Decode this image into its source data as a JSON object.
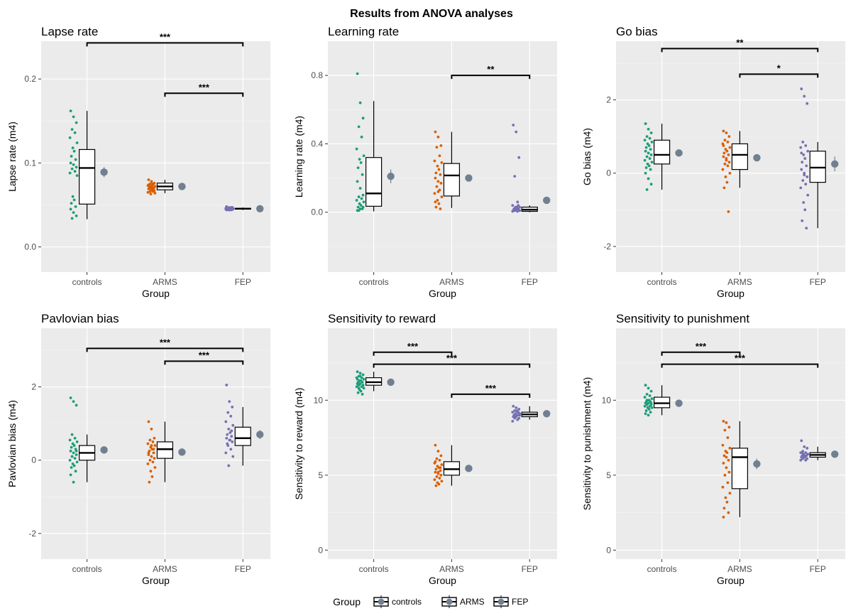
{
  "title": "Results from ANOVA analyses",
  "colors": {
    "controls": "#1b9e77",
    "ARMS": "#d95f02",
    "FEP": "#7570b3",
    "mean": "#708090",
    "panel": "#ebebeb"
  },
  "legend": {
    "title": "Group",
    "items": [
      "controls",
      "ARMS",
      "FEP"
    ],
    "position": "bottom"
  },
  "chart_data": [
    {
      "type": "box-jitter",
      "title": "Lapse rate",
      "xlabel": "Group",
      "ylabel": "Lapse rate (m4)",
      "categories": [
        "controls",
        "ARMS",
        "FEP"
      ],
      "ylim": [
        -0.03,
        0.245
      ],
      "yticks": [
        {
          "v": 0.0,
          "label": "0.0"
        },
        {
          "v": 0.1,
          "label": "0.1"
        },
        {
          "v": 0.2,
          "label": "0.2"
        }
      ],
      "points": [
        [
          0.162,
          0.155,
          0.148,
          0.14,
          0.136,
          0.13,
          0.124,
          0.118,
          0.114,
          0.108,
          0.104,
          0.1,
          0.098,
          0.095,
          0.093,
          0.09,
          0.088,
          0.085,
          0.06,
          0.056,
          0.052,
          0.048,
          0.045,
          0.041,
          0.037,
          0.034
        ],
        [
          0.08,
          0.078,
          0.076,
          0.075,
          0.074,
          0.073,
          0.072,
          0.072,
          0.071,
          0.07,
          0.07,
          0.069,
          0.068,
          0.067,
          0.066,
          0.066,
          0.065,
          0.064,
          0.063,
          0.075,
          0.071,
          0.068,
          0.074,
          0.069
        ],
        [
          0.048,
          0.047,
          0.047,
          0.046,
          0.046,
          0.046,
          0.045,
          0.045,
          0.045,
          0.045,
          0.044,
          0.044,
          0.044,
          0.047,
          0.046,
          0.045,
          0.045,
          0.046,
          0.044,
          0.045,
          0.046,
          0.047
        ]
      ],
      "boxes": [
        {
          "min": 0.033,
          "q1": 0.051,
          "median": 0.094,
          "q3": 0.116,
          "max": 0.162
        },
        {
          "min": 0.064,
          "q1": 0.068,
          "median": 0.072,
          "q3": 0.076,
          "max": 0.08
        },
        {
          "min": 0.044,
          "q1": 0.045,
          "median": 0.0455,
          "q3": 0.046,
          "max": 0.047
        }
      ],
      "means": [
        {
          "mean": 0.089,
          "lo": 0.083,
          "hi": 0.095
        },
        {
          "mean": 0.072,
          "lo": 0.071,
          "hi": 0.073
        },
        {
          "mean": 0.0455,
          "lo": 0.045,
          "hi": 0.046
        }
      ],
      "significance": [
        {
          "from": 0,
          "to": 2,
          "y": 0.243,
          "label": "***"
        },
        {
          "from": 1,
          "to": 2,
          "y": 0.183,
          "label": "***"
        }
      ]
    },
    {
      "type": "box-jitter",
      "title": "Learning rate",
      "xlabel": "Group",
      "ylabel": "Learning rate (m4)",
      "categories": [
        "controls",
        "ARMS",
        "FEP"
      ],
      "ylim": [
        -0.35,
        1.0
      ],
      "yticks": [
        {
          "v": 0.0,
          "label": "0.0"
        },
        {
          "v": 0.4,
          "label": "0.4"
        },
        {
          "v": 0.8,
          "label": "0.8"
        }
      ],
      "points": [
        [
          0.81,
          0.64,
          0.55,
          0.5,
          0.44,
          0.37,
          0.33,
          0.31,
          0.29,
          0.26,
          0.22,
          0.18,
          0.14,
          0.1,
          0.09,
          0.08,
          0.07,
          0.06,
          0.05,
          0.04,
          0.03,
          0.02,
          0.01,
          0.02,
          0.03,
          0.01
        ],
        [
          0.47,
          0.44,
          0.39,
          0.38,
          0.33,
          0.3,
          0.29,
          0.27,
          0.25,
          0.23,
          0.22,
          0.2,
          0.18,
          0.17,
          0.15,
          0.13,
          0.11,
          0.09,
          0.07,
          0.05,
          0.03,
          0.02,
          0.06,
          0.12
        ],
        [
          0.51,
          0.47,
          0.32,
          0.21,
          0.06,
          0.04,
          0.03,
          0.03,
          0.02,
          0.02,
          0.02,
          0.01,
          0.01,
          0.01,
          0.01,
          0.005,
          0.005,
          0.01,
          0.02,
          0.03,
          0.01,
          0.04
        ]
      ],
      "boxes": [
        {
          "min": 0.005,
          "q1": 0.035,
          "median": 0.11,
          "q3": 0.32,
          "max": 0.65
        },
        {
          "min": 0.025,
          "q1": 0.095,
          "median": 0.215,
          "q3": 0.285,
          "max": 0.47
        },
        {
          "min": 0.0,
          "q1": 0.005,
          "median": 0.015,
          "q3": 0.03,
          "max": 0.04
        }
      ],
      "means": [
        {
          "mean": 0.21,
          "lo": 0.17,
          "hi": 0.25
        },
        {
          "mean": 0.2,
          "lo": 0.185,
          "hi": 0.215
        },
        {
          "mean": 0.07,
          "lo": 0.06,
          "hi": 0.08
        }
      ],
      "significance": [
        {
          "from": 1,
          "to": 2,
          "y": 0.8,
          "label": "**"
        }
      ]
    },
    {
      "type": "box-jitter",
      "title": "Go bias",
      "xlabel": "Group",
      "ylabel": "Go bias (m4)",
      "categories": [
        "controls",
        "ARMS",
        "FEP"
      ],
      "ylim": [
        -2.7,
        3.6
      ],
      "yticks": [
        {
          "v": -2,
          "label": "-2"
        },
        {
          "v": 0,
          "label": "0"
        },
        {
          "v": 2,
          "label": "2"
        }
      ],
      "points": [
        [
          1.35,
          1.2,
          1.1,
          1.0,
          0.95,
          0.9,
          0.85,
          0.8,
          0.75,
          0.7,
          0.65,
          0.6,
          0.55,
          0.5,
          0.45,
          0.4,
          0.35,
          0.3,
          0.25,
          0.2,
          0.15,
          0.1,
          0.0,
          -0.15,
          -0.3,
          -0.45
        ],
        [
          1.15,
          1.1,
          1.0,
          0.9,
          0.85,
          0.8,
          0.7,
          0.65,
          0.6,
          0.55,
          0.5,
          0.45,
          0.4,
          0.3,
          0.25,
          0.2,
          0.1,
          0.0,
          -0.1,
          -0.25,
          -0.4,
          -1.05,
          0.75,
          0.35
        ],
        [
          2.3,
          2.1,
          1.9,
          0.85,
          0.75,
          0.7,
          0.6,
          0.5,
          0.4,
          0.3,
          0.2,
          0.1,
          0.0,
          -0.1,
          -0.2,
          -0.3,
          -0.4,
          -0.6,
          -0.8,
          -1.0,
          -1.3,
          -1.5,
          0.55,
          -0.05
        ]
      ],
      "boxes": [
        {
          "min": -0.45,
          "q1": 0.25,
          "median": 0.5,
          "q3": 0.9,
          "max": 1.35
        },
        {
          "min": -0.4,
          "q1": 0.1,
          "median": 0.5,
          "q3": 0.8,
          "max": 1.15
        },
        {
          "min": -1.5,
          "q1": -0.25,
          "median": 0.15,
          "q3": 0.6,
          "max": 0.85
        }
      ],
      "means": [
        {
          "mean": 0.55,
          "lo": 0.47,
          "hi": 0.63
        },
        {
          "mean": 0.42,
          "lo": 0.33,
          "hi": 0.51
        },
        {
          "mean": 0.25,
          "lo": 0.05,
          "hi": 0.45
        }
      ],
      "significance": [
        {
          "from": 0,
          "to": 2,
          "y": 3.4,
          "label": "**"
        },
        {
          "from": 1,
          "to": 2,
          "y": 2.7,
          "label": "*"
        }
      ]
    },
    {
      "type": "box-jitter",
      "title": "Pavlovian bias",
      "xlabel": "Group",
      "ylabel": "Pavlovian bias (m4)",
      "categories": [
        "controls",
        "ARMS",
        "FEP"
      ],
      "ylim": [
        -2.7,
        3.6
      ],
      "yticks": [
        {
          "v": -2,
          "label": "-2"
        },
        {
          "v": 0,
          "label": "0"
        },
        {
          "v": 2,
          "label": "2"
        }
      ],
      "points": [
        [
          1.7,
          1.6,
          1.5,
          0.7,
          0.6,
          0.55,
          0.5,
          0.45,
          0.4,
          0.35,
          0.3,
          0.25,
          0.2,
          0.15,
          0.1,
          0.05,
          0.0,
          -0.05,
          -0.1,
          -0.15,
          -0.2,
          -0.3,
          -0.4,
          -0.6,
          0.25,
          0.1
        ],
        [
          1.05,
          0.85,
          0.6,
          0.55,
          0.5,
          0.45,
          0.4,
          0.35,
          0.3,
          0.25,
          0.2,
          0.15,
          0.1,
          0.05,
          0.0,
          -0.05,
          -0.1,
          -0.2,
          -0.3,
          -0.45,
          -0.6,
          0.3,
          0.2,
          0.4
        ],
        [
          2.05,
          1.6,
          1.45,
          1.3,
          1.2,
          1.05,
          0.95,
          0.85,
          0.75,
          0.7,
          0.65,
          0.6,
          0.55,
          0.5,
          0.4,
          0.3,
          0.2,
          0.1,
          -0.15,
          0.55,
          0.45,
          0.8
        ]
      ],
      "boxes": [
        {
          "min": -0.6,
          "q1": 0.0,
          "median": 0.2,
          "q3": 0.4,
          "max": 0.7
        },
        {
          "min": -0.6,
          "q1": 0.05,
          "median": 0.3,
          "q3": 0.5,
          "max": 1.05
        },
        {
          "min": -0.15,
          "q1": 0.4,
          "median": 0.6,
          "q3": 0.9,
          "max": 1.45
        }
      ],
      "means": [
        {
          "mean": 0.28,
          "lo": 0.18,
          "hi": 0.38
        },
        {
          "mean": 0.22,
          "lo": 0.14,
          "hi": 0.3
        },
        {
          "mean": 0.7,
          "lo": 0.58,
          "hi": 0.82
        }
      ],
      "significance": [
        {
          "from": 0,
          "to": 2,
          "y": 3.05,
          "label": "***"
        },
        {
          "from": 1,
          "to": 2,
          "y": 2.7,
          "label": "***"
        }
      ]
    },
    {
      "type": "box-jitter",
      "title": "Sensitivity to reward",
      "xlabel": "Group",
      "ylabel": "Sensitivity to reward (m4)",
      "categories": [
        "controls",
        "ARMS",
        "FEP"
      ],
      "ylim": [
        -0.6,
        14.8
      ],
      "yticks": [
        {
          "v": 0,
          "label": "0"
        },
        {
          "v": 5,
          "label": "5"
        },
        {
          "v": 10,
          "label": "10"
        }
      ],
      "points": [
        [
          11.9,
          11.8,
          11.7,
          11.6,
          11.5,
          11.5,
          11.4,
          11.3,
          11.3,
          11.2,
          11.2,
          11.1,
          11.1,
          11.0,
          11.0,
          10.9,
          10.9,
          10.8,
          10.7,
          10.6,
          10.5,
          10.4,
          11.4,
          11.6,
          11.0,
          10.8
        ],
        [
          7.0,
          6.6,
          6.3,
          6.1,
          6.0,
          5.8,
          5.7,
          5.6,
          5.5,
          5.4,
          5.3,
          5.2,
          5.1,
          5.0,
          4.9,
          4.8,
          4.7,
          4.6,
          4.5,
          4.4,
          4.3,
          5.5,
          5.9,
          5.2
        ],
        [
          9.6,
          9.5,
          9.4,
          9.3,
          9.2,
          9.2,
          9.1,
          9.1,
          9.0,
          9.0,
          9.0,
          8.9,
          8.9,
          8.8,
          8.8,
          8.7,
          8.6,
          9.0,
          9.1,
          9.3,
          8.9,
          9.2
        ]
      ],
      "boxes": [
        {
          "min": 10.6,
          "q1": 11.0,
          "median": 11.2,
          "q3": 11.5,
          "max": 11.9
        },
        {
          "min": 4.3,
          "q1": 5.0,
          "median": 5.4,
          "q3": 5.9,
          "max": 7.0
        },
        {
          "min": 8.7,
          "q1": 8.9,
          "median": 9.05,
          "q3": 9.2,
          "max": 9.6
        }
      ],
      "means": [
        {
          "mean": 11.2,
          "lo": 11.1,
          "hi": 11.3
        },
        {
          "mean": 5.45,
          "lo": 5.3,
          "hi": 5.6
        },
        {
          "mean": 9.1,
          "lo": 9.03,
          "hi": 9.17
        }
      ],
      "significance": [
        {
          "from": 0,
          "to": 1,
          "y": 13.2,
          "label": "***"
        },
        {
          "from": 0,
          "to": 2,
          "y": 12.4,
          "label": "***"
        },
        {
          "from": 1,
          "to": 2,
          "y": 10.4,
          "label": "***"
        }
      ]
    },
    {
      "type": "box-jitter",
      "title": "Sensitivity to punishment",
      "xlabel": "Group",
      "ylabel": "Sensitivity to punishment (m4)",
      "categories": [
        "controls",
        "ARMS",
        "FEP"
      ],
      "ylim": [
        -0.6,
        14.8
      ],
      "yticks": [
        {
          "v": 0,
          "label": "0"
        },
        {
          "v": 5,
          "label": "5"
        },
        {
          "v": 10,
          "label": "10"
        }
      ],
      "points": [
        [
          11.0,
          10.8,
          10.6,
          10.4,
          10.3,
          10.2,
          10.1,
          10.0,
          10.0,
          9.9,
          9.9,
          9.8,
          9.8,
          9.7,
          9.7,
          9.6,
          9.6,
          9.5,
          9.5,
          9.4,
          9.3,
          9.2,
          9.1,
          9.0,
          9.8,
          10.0
        ],
        [
          8.6,
          8.5,
          8.2,
          8.0,
          7.5,
          7.0,
          6.8,
          6.6,
          6.5,
          6.3,
          6.0,
          5.8,
          5.5,
          5.2,
          5.0,
          4.5,
          4.2,
          3.8,
          3.5,
          3.2,
          2.8,
          2.5,
          2.2,
          6.2
        ],
        [
          7.3,
          6.9,
          6.8,
          6.6,
          6.5,
          6.5,
          6.4,
          6.4,
          6.3,
          6.3,
          6.3,
          6.2,
          6.2,
          6.1,
          6.1,
          6.0,
          6.0,
          6.4,
          6.3,
          6.2,
          6.5,
          6.3
        ]
      ],
      "boxes": [
        {
          "min": 9.0,
          "q1": 9.5,
          "median": 9.8,
          "q3": 10.2,
          "max": 11.0
        },
        {
          "min": 2.2,
          "q1": 4.1,
          "median": 6.2,
          "q3": 6.8,
          "max": 8.6
        },
        {
          "min": 6.0,
          "q1": 6.2,
          "median": 6.35,
          "q3": 6.5,
          "max": 6.9
        }
      ],
      "means": [
        {
          "mean": 9.8,
          "lo": 9.7,
          "hi": 9.9
        },
        {
          "mean": 5.75,
          "lo": 5.4,
          "hi": 6.1
        },
        {
          "mean": 6.4,
          "lo": 6.33,
          "hi": 6.47
        }
      ],
      "significance": [
        {
          "from": 0,
          "to": 1,
          "y": 13.2,
          "label": "***"
        },
        {
          "from": 0,
          "to": 2,
          "y": 12.4,
          "label": "***"
        }
      ]
    }
  ]
}
